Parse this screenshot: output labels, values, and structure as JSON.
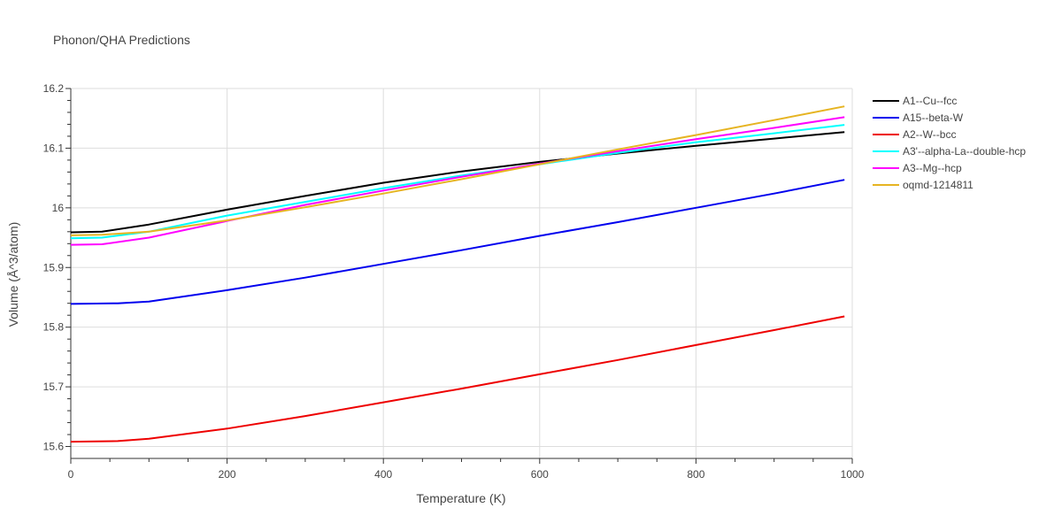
{
  "chart_data": {
    "type": "line",
    "title": "Phonon/QHA Predictions",
    "xlabel": "Temperature (K)",
    "ylabel": "Volume (Å^3/atom)",
    "xlim": [
      0,
      1000
    ],
    "ylim": [
      15.58,
      16.2
    ],
    "x_ticks": [
      0,
      200,
      400,
      600,
      800,
      1000
    ],
    "y_ticks": [
      15.6,
      15.7,
      15.8,
      15.9,
      16.0,
      16.1,
      16.2
    ],
    "x_tick_labels": [
      "0",
      "200",
      "400",
      "600",
      "800",
      "1000"
    ],
    "y_tick_labels": [
      "15.6",
      "15.7",
      "15.8",
      "15.9",
      "16",
      "16.1",
      "16.2"
    ],
    "grid": true,
    "legend_position": "right",
    "series": [
      {
        "name": "A1--Cu--fcc",
        "color": "#000000",
        "x": [
          0,
          40,
          100,
          200,
          300,
          400,
          500,
          600,
          700,
          800,
          900,
          990
        ],
        "y": [
          15.959,
          15.96,
          15.972,
          15.997,
          16.02,
          16.042,
          16.061,
          16.077,
          16.091,
          16.104,
          16.116,
          16.127
        ]
      },
      {
        "name": "A15--beta-W",
        "color": "#0000ee",
        "x": [
          0,
          60,
          100,
          200,
          300,
          400,
          500,
          600,
          700,
          800,
          900,
          990
        ],
        "y": [
          15.839,
          15.84,
          15.843,
          15.862,
          15.883,
          15.906,
          15.929,
          15.953,
          15.976,
          16.0,
          16.024,
          16.047
        ]
      },
      {
        "name": "A2--W--bcc",
        "color": "#ee0000",
        "x": [
          0,
          60,
          100,
          200,
          300,
          400,
          500,
          600,
          700,
          800,
          900,
          990
        ],
        "y": [
          15.608,
          15.609,
          15.613,
          15.63,
          15.651,
          15.674,
          15.697,
          15.721,
          15.745,
          15.77,
          15.795,
          15.818
        ]
      },
      {
        "name": "A3'--alpha-La--double-hcp",
        "color": "#00ffff",
        "x": [
          0,
          40,
          100,
          200,
          300,
          400,
          500,
          600,
          700,
          800,
          900,
          990
        ],
        "y": [
          15.949,
          15.95,
          15.96,
          15.987,
          16.01,
          16.033,
          16.054,
          16.073,
          16.092,
          16.11,
          16.125,
          16.139
        ]
      },
      {
        "name": "A3--Mg--hcp",
        "color": "#ff00ff",
        "x": [
          0,
          40,
          100,
          200,
          300,
          400,
          500,
          600,
          700,
          800,
          900,
          990
        ],
        "y": [
          15.938,
          15.939,
          15.95,
          15.978,
          16.005,
          16.029,
          16.052,
          16.074,
          16.095,
          16.115,
          16.134,
          16.152
        ]
      },
      {
        "name": "oqmd-1214811",
        "color": "#e6b422",
        "x": [
          0,
          40,
          100,
          200,
          300,
          400,
          500,
          600,
          700,
          800,
          900,
          990
        ],
        "y": [
          15.954,
          15.955,
          15.96,
          15.979,
          16.001,
          16.024,
          16.048,
          16.073,
          16.098,
          16.122,
          16.147,
          16.17
        ]
      }
    ]
  }
}
